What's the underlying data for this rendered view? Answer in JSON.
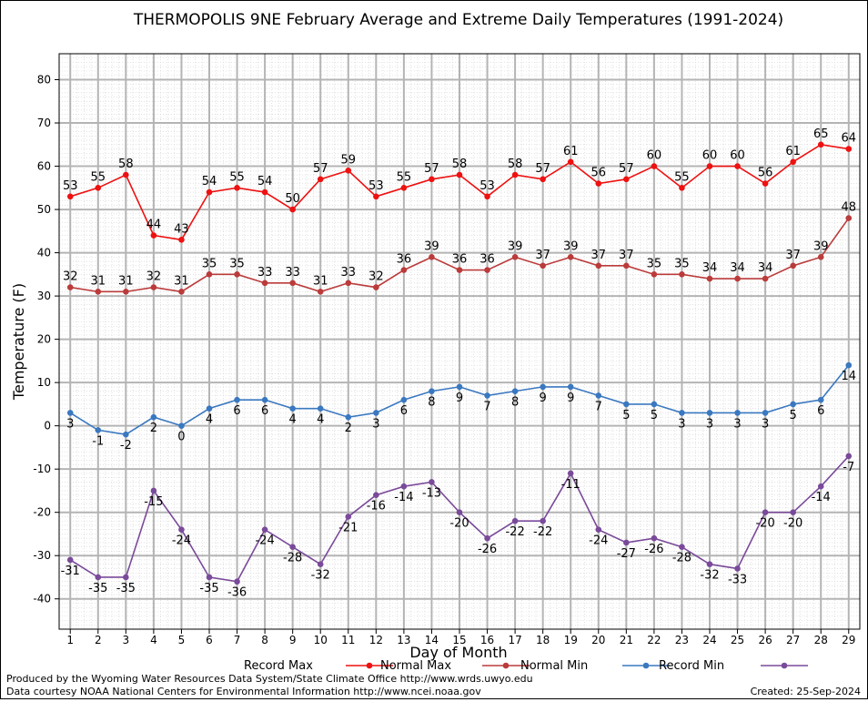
{
  "chart_data": {
    "type": "line",
    "title": "THERMOPOLIS 9NE February Average and Extreme Daily Temperatures (1991-2024)",
    "xlabel": "Day of Month",
    "ylabel": "Temperature (F)",
    "ylim": [
      -47,
      86
    ],
    "yticks": [
      -40,
      -30,
      -20,
      -10,
      0,
      10,
      20,
      30,
      40,
      50,
      60,
      70,
      80
    ],
    "x": [
      1,
      2,
      3,
      4,
      5,
      6,
      7,
      8,
      9,
      10,
      11,
      12,
      13,
      14,
      15,
      16,
      17,
      18,
      19,
      20,
      21,
      22,
      23,
      24,
      25,
      26,
      27,
      28,
      29
    ],
    "grid": true,
    "legend_position": "bottom",
    "series": [
      {
        "name": "Record Max",
        "color": "#ee1111",
        "label_pos": "above",
        "values": [
          53,
          55,
          58,
          44,
          43,
          54,
          55,
          54,
          50,
          57,
          59,
          53,
          55,
          57,
          58,
          53,
          58,
          57,
          61,
          56,
          57,
          60,
          55,
          60,
          60,
          56,
          61,
          65,
          64
        ]
      },
      {
        "name": "Normal Max",
        "color": "#bb3b3b",
        "label_pos": "above",
        "values": [
          32,
          31,
          31,
          32,
          31,
          35,
          35,
          33,
          33,
          31,
          33,
          32,
          36,
          39,
          36,
          36,
          39,
          37,
          39,
          37,
          37,
          35,
          35,
          34,
          34,
          34,
          37,
          39,
          48
        ]
      },
      {
        "name": "Normal Min",
        "color": "#3a78c0",
        "label_pos": "below",
        "values": [
          3,
          -1,
          -2,
          2,
          0,
          4,
          6,
          6,
          4,
          4,
          2,
          3,
          6,
          8,
          9,
          7,
          8,
          9,
          9,
          7,
          5,
          5,
          3,
          3,
          3,
          3,
          5,
          6,
          14
        ]
      },
      {
        "name": "Record Min",
        "color": "#7a4a9a",
        "label_pos": "below",
        "values": [
          -31,
          -35,
          -35,
          -15,
          -24,
          -35,
          -36,
          -24,
          -28,
          -32,
          -21,
          -16,
          -14,
          -13,
          -20,
          -26,
          -22,
          -22,
          -11,
          -24,
          -27,
          -26,
          -28,
          -32,
          -33,
          -20,
          -20,
          -14,
          -7
        ]
      }
    ]
  },
  "footer": {
    "line1": "Produced by the Wyoming Water Resources Data System/State Climate Office http://www.wrds.uwyo.edu",
    "line2": "Data courtesy NOAA National Centers for Environmental Information http://www.ncei.noaa.gov",
    "created": "Created:  25-Sep-2024"
  }
}
